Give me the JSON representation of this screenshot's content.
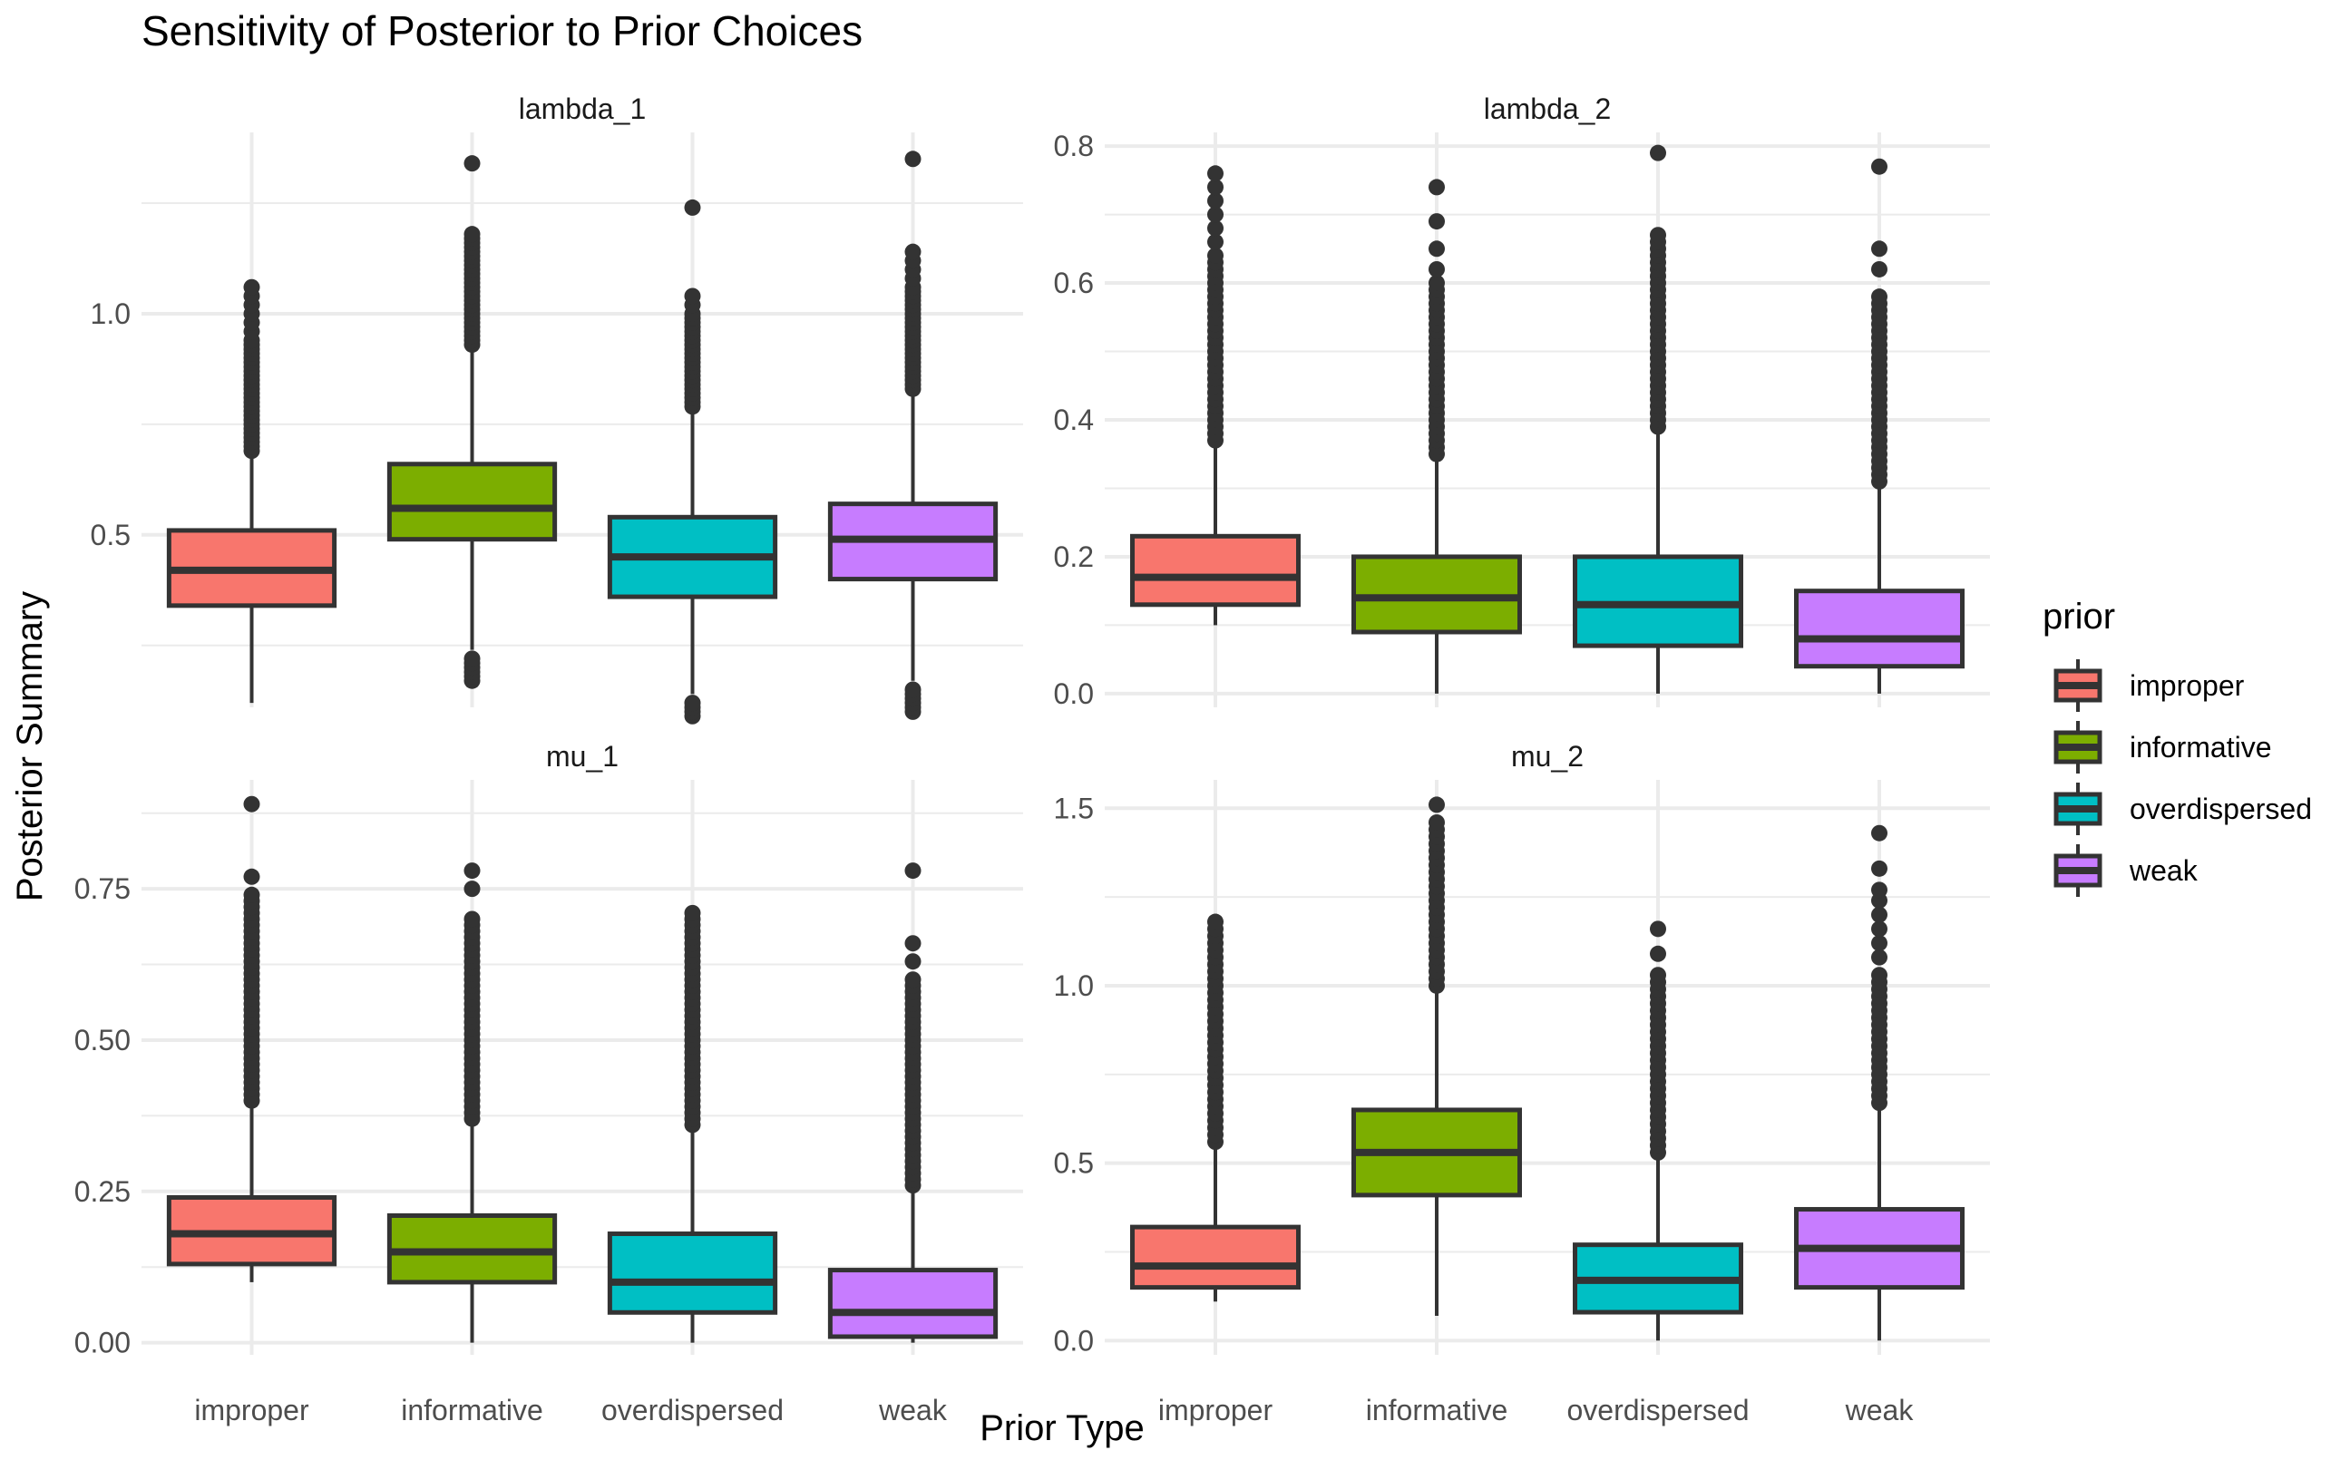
{
  "chart_data": {
    "type": "boxplot",
    "title": "Sensitivity of Posterior to Prior Choices",
    "xlabel": "Prior Type",
    "ylabel": "Posterior Summary",
    "categories": [
      "improper",
      "informative",
      "overdispersed",
      "weak"
    ],
    "legend": {
      "title": "prior",
      "position": "right",
      "entries": [
        {
          "label": "improper",
          "color": "#F8766D"
        },
        {
          "label": "informative",
          "color": "#7CAE00"
        },
        {
          "label": "overdispersed",
          "color": "#00BFC4"
        },
        {
          "label": "weak",
          "color": "#C77CFF"
        }
      ]
    },
    "panels": [
      {
        "name": "lambda_1",
        "ylim": [
          0.11,
          1.41
        ],
        "major_ticks": [
          0.5,
          1.0
        ],
        "tick_labels": [
          "0.5",
          "1.0"
        ],
        "minor_ticks": [
          0.25,
          0.75,
          1.25
        ],
        "boxes": [
          {
            "category": "improper",
            "whisker_low": 0.12,
            "q1": 0.34,
            "median": 0.42,
            "q3": 0.51,
            "whisker_high": 0.68,
            "outliers": [
              0.69,
              0.7,
              0.71,
              0.72,
              0.73,
              0.74,
              0.75,
              0.76,
              0.77,
              0.78,
              0.79,
              0.8,
              0.81,
              0.82,
              0.83,
              0.84,
              0.85,
              0.86,
              0.87,
              0.88,
              0.89,
              0.9,
              0.91,
              0.92,
              0.93,
              0.94,
              0.96,
              0.98,
              1.0,
              1.02,
              1.04,
              1.06
            ]
          },
          {
            "category": "informative",
            "whisker_low": 0.24,
            "q1": 0.49,
            "median": 0.56,
            "q3": 0.66,
            "whisker_high": 0.92,
            "outliers": [
              0.17,
              0.18,
              0.19,
              0.2,
              0.21,
              0.22,
              0.93,
              0.94,
              0.95,
              0.96,
              0.97,
              0.98,
              0.99,
              1.0,
              1.01,
              1.02,
              1.03,
              1.04,
              1.05,
              1.06,
              1.07,
              1.08,
              1.09,
              1.1,
              1.11,
              1.12,
              1.13,
              1.14,
              1.15,
              1.16,
              1.17,
              1.18,
              1.34
            ]
          },
          {
            "category": "overdispersed",
            "whisker_low": 0.14,
            "q1": 0.36,
            "median": 0.45,
            "q3": 0.54,
            "whisker_high": 0.78,
            "outliers": [
              0.09,
              0.1,
              0.11,
              0.12,
              0.79,
              0.8,
              0.81,
              0.82,
              0.83,
              0.84,
              0.85,
              0.86,
              0.87,
              0.88,
              0.89,
              0.9,
              0.91,
              0.92,
              0.93,
              0.94,
              0.95,
              0.96,
              0.97,
              0.98,
              0.99,
              1.0,
              1.02,
              1.04,
              1.24
            ]
          },
          {
            "category": "weak",
            "whisker_low": 0.17,
            "q1": 0.4,
            "median": 0.49,
            "q3": 0.57,
            "whisker_high": 0.82,
            "outliers": [
              0.1,
              0.11,
              0.12,
              0.13,
              0.14,
              0.15,
              0.83,
              0.84,
              0.85,
              0.86,
              0.87,
              0.88,
              0.89,
              0.9,
              0.91,
              0.92,
              0.93,
              0.94,
              0.95,
              0.96,
              0.97,
              0.98,
              0.99,
              1.0,
              1.01,
              1.02,
              1.03,
              1.04,
              1.05,
              1.06,
              1.08,
              1.1,
              1.12,
              1.14,
              1.35
            ]
          }
        ]
      },
      {
        "name": "lambda_2",
        "ylim": [
          -0.02,
          0.82
        ],
        "major_ticks": [
          0.0,
          0.2,
          0.4,
          0.6,
          0.8
        ],
        "tick_labels": [
          "0.0",
          "0.2",
          "0.4",
          "0.6",
          "0.8"
        ],
        "minor_ticks": [
          0.1,
          0.3,
          0.5,
          0.7
        ],
        "boxes": [
          {
            "category": "improper",
            "whisker_low": 0.1,
            "q1": 0.13,
            "median": 0.17,
            "q3": 0.23,
            "whisker_high": 0.37,
            "outliers": [
              0.37,
              0.38,
              0.39,
              0.4,
              0.41,
              0.42,
              0.43,
              0.44,
              0.45,
              0.46,
              0.47,
              0.48,
              0.49,
              0.5,
              0.51,
              0.52,
              0.53,
              0.54,
              0.55,
              0.56,
              0.57,
              0.58,
              0.59,
              0.6,
              0.61,
              0.62,
              0.63,
              0.64,
              0.66,
              0.68,
              0.7,
              0.72,
              0.74,
              0.76
            ]
          },
          {
            "category": "informative",
            "whisker_low": 0.0,
            "q1": 0.09,
            "median": 0.14,
            "q3": 0.2,
            "whisker_high": 0.35,
            "outliers": [
              0.35,
              0.36,
              0.37,
              0.38,
              0.39,
              0.4,
              0.41,
              0.42,
              0.43,
              0.44,
              0.45,
              0.46,
              0.47,
              0.48,
              0.49,
              0.5,
              0.51,
              0.52,
              0.53,
              0.54,
              0.55,
              0.56,
              0.57,
              0.58,
              0.59,
              0.6,
              0.62,
              0.65,
              0.69,
              0.74
            ]
          },
          {
            "category": "overdispersed",
            "whisker_low": 0.0,
            "q1": 0.07,
            "median": 0.13,
            "q3": 0.2,
            "whisker_high": 0.39,
            "outliers": [
              0.39,
              0.4,
              0.41,
              0.42,
              0.43,
              0.44,
              0.45,
              0.46,
              0.47,
              0.48,
              0.49,
              0.5,
              0.51,
              0.52,
              0.53,
              0.54,
              0.55,
              0.56,
              0.57,
              0.58,
              0.59,
              0.6,
              0.61,
              0.62,
              0.63,
              0.64,
              0.65,
              0.66,
              0.67,
              0.79
            ]
          },
          {
            "category": "weak",
            "whisker_low": 0.0,
            "q1": 0.04,
            "median": 0.08,
            "q3": 0.15,
            "whisker_high": 0.31,
            "outliers": [
              0.31,
              0.32,
              0.33,
              0.34,
              0.35,
              0.36,
              0.37,
              0.38,
              0.39,
              0.4,
              0.41,
              0.42,
              0.43,
              0.44,
              0.45,
              0.46,
              0.47,
              0.48,
              0.49,
              0.5,
              0.51,
              0.52,
              0.53,
              0.54,
              0.55,
              0.56,
              0.57,
              0.58,
              0.62,
              0.65,
              0.77
            ]
          }
        ]
      },
      {
        "name": "mu_1",
        "ylim": [
          -0.02,
          0.93
        ],
        "major_ticks": [
          0.0,
          0.25,
          0.5,
          0.75
        ],
        "tick_labels": [
          "0.00",
          "0.25",
          "0.50",
          "0.75"
        ],
        "minor_ticks": [
          0.125,
          0.375,
          0.625,
          0.875
        ],
        "boxes": [
          {
            "category": "improper",
            "whisker_low": 0.1,
            "q1": 0.13,
            "median": 0.18,
            "q3": 0.24,
            "whisker_high": 0.4,
            "outliers": [
              0.4,
              0.41,
              0.42,
              0.43,
              0.44,
              0.45,
              0.46,
              0.47,
              0.48,
              0.49,
              0.5,
              0.51,
              0.52,
              0.53,
              0.54,
              0.55,
              0.56,
              0.57,
              0.58,
              0.59,
              0.6,
              0.61,
              0.62,
              0.63,
              0.64,
              0.65,
              0.66,
              0.67,
              0.68,
              0.69,
              0.7,
              0.71,
              0.72,
              0.73,
              0.74,
              0.77,
              0.89
            ]
          },
          {
            "category": "informative",
            "whisker_low": 0.0,
            "q1": 0.1,
            "median": 0.15,
            "q3": 0.21,
            "whisker_high": 0.37,
            "outliers": [
              0.37,
              0.38,
              0.39,
              0.4,
              0.41,
              0.42,
              0.43,
              0.44,
              0.45,
              0.46,
              0.47,
              0.48,
              0.49,
              0.5,
              0.51,
              0.52,
              0.53,
              0.54,
              0.55,
              0.56,
              0.57,
              0.58,
              0.59,
              0.6,
              0.61,
              0.62,
              0.63,
              0.64,
              0.65,
              0.66,
              0.67,
              0.68,
              0.69,
              0.7,
              0.75,
              0.78
            ]
          },
          {
            "category": "overdispersed",
            "whisker_low": 0.0,
            "q1": 0.05,
            "median": 0.1,
            "q3": 0.18,
            "whisker_high": 0.36,
            "outliers": [
              0.36,
              0.37,
              0.38,
              0.39,
              0.4,
              0.41,
              0.42,
              0.43,
              0.44,
              0.45,
              0.46,
              0.47,
              0.48,
              0.49,
              0.5,
              0.51,
              0.52,
              0.53,
              0.54,
              0.55,
              0.56,
              0.57,
              0.58,
              0.59,
              0.6,
              0.61,
              0.62,
              0.63,
              0.64,
              0.65,
              0.66,
              0.67,
              0.68,
              0.69,
              0.7,
              0.71
            ]
          },
          {
            "category": "weak",
            "whisker_low": 0.0,
            "q1": 0.01,
            "median": 0.05,
            "q3": 0.12,
            "whisker_high": 0.26,
            "outliers": [
              0.26,
              0.27,
              0.28,
              0.29,
              0.3,
              0.31,
              0.32,
              0.33,
              0.34,
              0.35,
              0.36,
              0.37,
              0.38,
              0.39,
              0.4,
              0.41,
              0.42,
              0.43,
              0.44,
              0.45,
              0.46,
              0.47,
              0.48,
              0.49,
              0.5,
              0.51,
              0.52,
              0.53,
              0.54,
              0.55,
              0.56,
              0.57,
              0.58,
              0.59,
              0.6,
              0.63,
              0.66,
              0.78
            ]
          }
        ]
      },
      {
        "name": "mu_2",
        "ylim": [
          -0.04,
          1.58
        ],
        "major_ticks": [
          0.0,
          0.5,
          1.0,
          1.5
        ],
        "tick_labels": [
          "0.0",
          "0.5",
          "1.0",
          "1.5"
        ],
        "minor_ticks": [
          0.25,
          0.75,
          1.25
        ],
        "boxes": [
          {
            "category": "improper",
            "whisker_low": 0.11,
            "q1": 0.15,
            "median": 0.21,
            "q3": 0.32,
            "whisker_high": 0.56,
            "outliers": [
              0.56,
              0.58,
              0.6,
              0.62,
              0.64,
              0.66,
              0.68,
              0.7,
              0.72,
              0.74,
              0.76,
              0.78,
              0.8,
              0.82,
              0.84,
              0.86,
              0.88,
              0.9,
              0.92,
              0.94,
              0.96,
              0.98,
              1.0,
              1.02,
              1.04,
              1.06,
              1.08,
              1.1,
              1.12,
              1.14,
              1.16,
              1.18
            ]
          },
          {
            "category": "informative",
            "whisker_low": 0.07,
            "q1": 0.41,
            "median": 0.53,
            "q3": 0.65,
            "whisker_high": 1.0,
            "outliers": [
              1.0,
              1.02,
              1.04,
              1.06,
              1.08,
              1.1,
              1.12,
              1.14,
              1.16,
              1.18,
              1.2,
              1.22,
              1.24,
              1.26,
              1.28,
              1.3,
              1.32,
              1.34,
              1.36,
              1.38,
              1.4,
              1.42,
              1.44,
              1.46,
              1.51
            ]
          },
          {
            "category": "overdispersed",
            "whisker_low": 0.0,
            "q1": 0.08,
            "median": 0.17,
            "q3": 0.27,
            "whisker_high": 0.53,
            "outliers": [
              0.53,
              0.55,
              0.57,
              0.59,
              0.61,
              0.63,
              0.65,
              0.67,
              0.69,
              0.71,
              0.73,
              0.75,
              0.77,
              0.79,
              0.81,
              0.83,
              0.85,
              0.87,
              0.89,
              0.91,
              0.93,
              0.95,
              0.97,
              0.99,
              1.01,
              1.03,
              1.09,
              1.16
            ]
          },
          {
            "category": "weak",
            "whisker_low": 0.0,
            "q1": 0.15,
            "median": 0.26,
            "q3": 0.37,
            "whisker_high": 0.67,
            "outliers": [
              0.67,
              0.69,
              0.71,
              0.73,
              0.75,
              0.77,
              0.79,
              0.81,
              0.83,
              0.85,
              0.87,
              0.89,
              0.91,
              0.93,
              0.95,
              0.97,
              0.99,
              1.01,
              1.03,
              1.08,
              1.12,
              1.16,
              1.2,
              1.24,
              1.27,
              1.33,
              1.43
            ]
          }
        ]
      }
    ]
  }
}
